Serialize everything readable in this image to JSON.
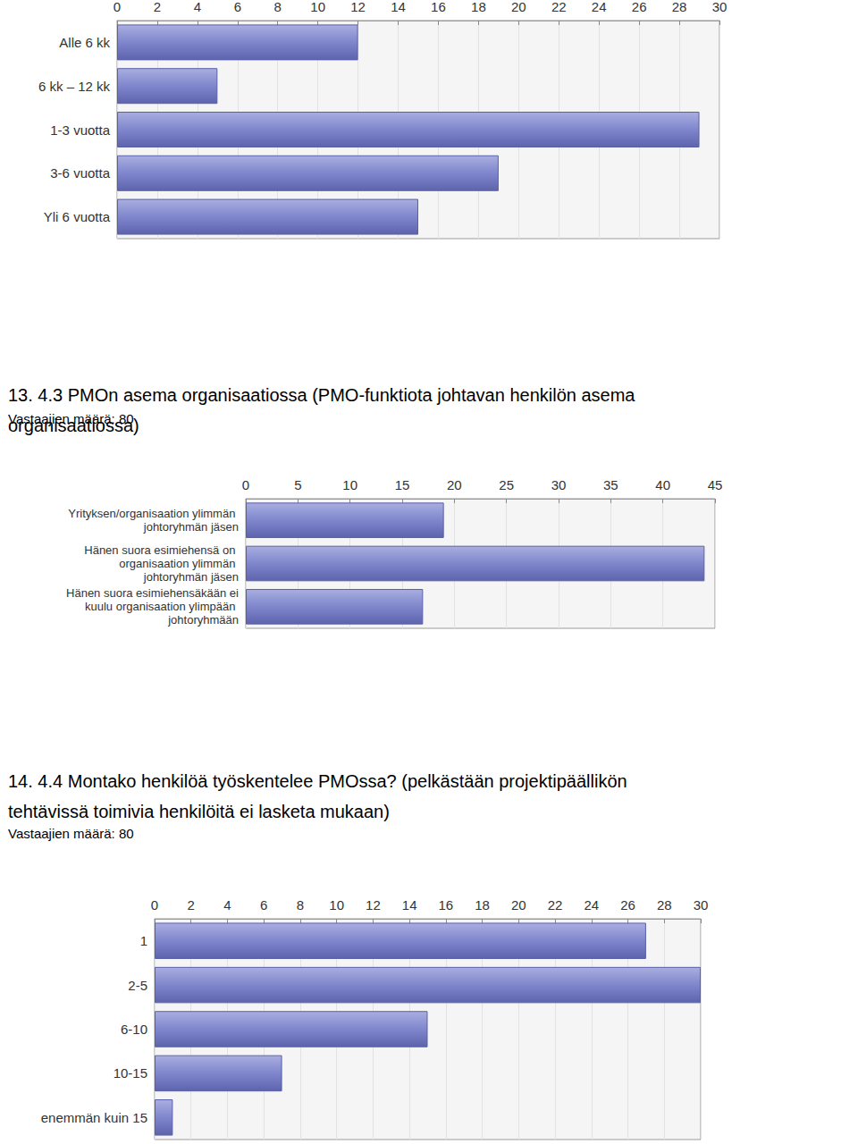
{
  "chart_data": [
    {
      "type": "bar",
      "orientation": "horizontal",
      "categories": [
        "Alle 6 kk",
        "6 kk – 12 kk",
        "1-3 vuotta",
        "3-6 vuotta",
        "Yli 6 vuotta"
      ],
      "values": [
        12,
        5,
        29,
        19,
        15
      ],
      "color": "#7f86cc",
      "xlim": [
        0,
        30
      ],
      "xticks": [
        0,
        2,
        4,
        6,
        8,
        10,
        12,
        14,
        16,
        18,
        20,
        22,
        24,
        26,
        28,
        30
      ],
      "grid": true
    },
    {
      "type": "bar",
      "orientation": "horizontal",
      "title": "13. 4.3 PMOn asema organisaatiossa (PMO-funktiota johtavan henkilön asema organisaatiossa)",
      "subtitle": "Vastaajien määrä: 80",
      "categories": [
        "Yrityksen/organisaation ylimmän johtoryhmän jäsen",
        "Hänen suora esimiehensä on organisaation ylimmän johtoryhmän jäsen",
        "Hänen suora esimiehensäkään ei kuulu organisaation ylimpään johtoryhmään"
      ],
      "values": [
        19,
        44,
        17
      ],
      "color": "#7f86cc",
      "xlim": [
        0,
        45
      ],
      "xticks": [
        0,
        5,
        10,
        15,
        20,
        25,
        30,
        35,
        40,
        45
      ],
      "grid": true
    },
    {
      "type": "bar",
      "orientation": "horizontal",
      "title": "14. 4.4 Montako henkilöä työskentelee PMOssa? (pelkästään projektipäällikön tehtävissä toimivia henkilöitä ei lasketa mukaan)",
      "subtitle": "Vastaajien määrä: 80",
      "categories": [
        "1",
        "2-5",
        "6-10",
        "10-15",
        "enemmän kuin 15"
      ],
      "values": [
        27,
        30,
        15,
        7,
        1
      ],
      "color": "#7f86cc",
      "xlim": [
        0,
        30
      ],
      "xticks": [
        0,
        2,
        4,
        6,
        8,
        10,
        12,
        14,
        16,
        18,
        20,
        22,
        24,
        26,
        28,
        30
      ],
      "grid": true
    }
  ]
}
